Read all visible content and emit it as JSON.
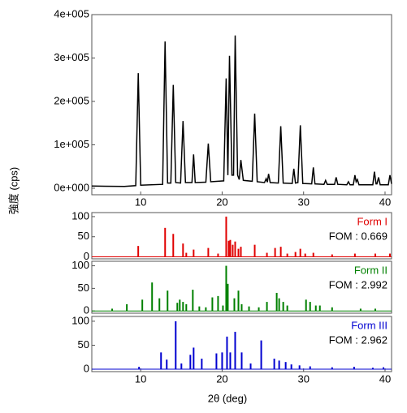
{
  "chart_data": [
    {
      "type": "line",
      "color": "#000000",
      "ylabel": "強度 (cps)",
      "xlim": [
        4,
        40.8
      ],
      "ylim": [
        -15000,
        400000
      ],
      "xticks": [
        10,
        20,
        30,
        40
      ],
      "yticks": [
        {
          "value": 0,
          "label": "0e+000"
        },
        {
          "value": 100000,
          "label": "1e+005"
        },
        {
          "value": 200000,
          "label": "2e+005"
        },
        {
          "value": 300000,
          "label": "3e+005"
        },
        {
          "value": 400000,
          "label": "4e+005"
        }
      ],
      "x": [
        4,
        8,
        9.4,
        9.7,
        10.0,
        12.7,
        13.0,
        13.3,
        13.7,
        14.0,
        14.3,
        14.9,
        15.2,
        15.5,
        16.3,
        16.5,
        16.7,
        18.0,
        18.3,
        18.6,
        20.2,
        20.5,
        20.7,
        20.9,
        21.2,
        21.4,
        21.6,
        21.9,
        22.1,
        22.3,
        22.6,
        23.7,
        24.0,
        24.3,
        25.2,
        25.4,
        25.55,
        25.7,
        25.9,
        26.9,
        27.2,
        27.5,
        28.6,
        28.8,
        29.0,
        29.3,
        29.6,
        29.9,
        31.0,
        31.2,
        31.4,
        32.5,
        32.7,
        32.9,
        33.8,
        34.0,
        34.2,
        35.3,
        35.5,
        35.7,
        36.1,
        36.3,
        36.45,
        36.6,
        36.8,
        38.5,
        38.7,
        38.9,
        39.0,
        39.2,
        39.4,
        40.4,
        40.6,
        40.8
      ],
      "values": [
        5000,
        4000,
        6000,
        265000,
        7000,
        9000,
        338000,
        12000,
        12000,
        238000,
        13000,
        12000,
        155000,
        13000,
        13000,
        78000,
        13000,
        14000,
        103000,
        15000,
        17000,
        253000,
        30000,
        305000,
        30000,
        30000,
        352000,
        30000,
        20000,
        65000,
        18000,
        16000,
        172000,
        15000,
        13000,
        22000,
        14000,
        33000,
        13000,
        12000,
        143000,
        12000,
        11000,
        45000,
        12000,
        13000,
        145000,
        11000,
        10000,
        48000,
        10000,
        9000,
        18000,
        9000,
        9000,
        25000,
        9000,
        8000,
        15000,
        8000,
        8000,
        30000,
        15000,
        20000,
        8000,
        8000,
        38000,
        10000,
        10000,
        25000,
        8000,
        8000,
        30000,
        10000
      ]
    },
    {
      "type": "stem",
      "name": "Form I",
      "annotation": "FOM : 0.669",
      "color": "#e00000",
      "xlim": [
        4,
        40.8
      ],
      "ylim": [
        -5,
        110
      ],
      "yticks": [
        0,
        50,
        100
      ],
      "x": [
        9.7,
        13.0,
        14.0,
        15.2,
        15.6,
        16.5,
        18.3,
        19.5,
        20.5,
        20.8,
        21.0,
        21.3,
        21.6,
        22.0,
        22.3,
        24.0,
        25.5,
        26.5,
        27.2,
        28.0,
        29.0,
        29.6,
        30.2,
        31.2,
        33.5,
        36.3,
        38.8,
        40.6
      ],
      "values": [
        27,
        72,
        57,
        33,
        10,
        18,
        22,
        8,
        100,
        40,
        42,
        30,
        38,
        20,
        25,
        30,
        10,
        22,
        25,
        8,
        12,
        20,
        8,
        10,
        6,
        8,
        8,
        8
      ]
    },
    {
      "type": "stem",
      "name": "Form II",
      "annotation": "FOM : 2.992",
      "color": "#008000",
      "xlim": [
        4,
        40.8
      ],
      "ylim": [
        -5,
        110
      ],
      "yticks": [
        0,
        50,
        100
      ],
      "x": [
        6.5,
        8.3,
        10.2,
        11.4,
        12.3,
        13.3,
        14.5,
        14.8,
        15.2,
        15.6,
        16.4,
        17.2,
        18.0,
        18.8,
        19.5,
        20.1,
        20.5,
        20.7,
        21.5,
        22.0,
        22.4,
        23.3,
        24.5,
        25.5,
        26.7,
        27.0,
        27.5,
        28.0,
        30.3,
        30.8,
        31.5,
        32.0,
        33.5,
        37.0,
        38.8
      ],
      "values": [
        5,
        15,
        25,
        63,
        28,
        45,
        18,
        25,
        20,
        15,
        47,
        10,
        8,
        30,
        33,
        12,
        100,
        60,
        28,
        45,
        15,
        10,
        8,
        20,
        40,
        28,
        20,
        12,
        25,
        20,
        12,
        12,
        8,
        5,
        5
      ]
    },
    {
      "type": "stem",
      "name": "Form III",
      "annotation": "FOM : 2.962",
      "color": "#0000d0",
      "xlabel": "2θ (deg)",
      "xlim": [
        4,
        40.8
      ],
      "ylim": [
        -5,
        110
      ],
      "yticks": [
        0,
        50,
        100
      ],
      "xticks": [
        10,
        20,
        30,
        40
      ],
      "x": [
        9.8,
        12.5,
        13.2,
        14.3,
        15.0,
        16.1,
        16.5,
        17.5,
        19.3,
        20.0,
        20.6,
        21.0,
        21.6,
        22.4,
        23.5,
        24.8,
        26.4,
        27.0,
        27.8,
        28.5,
        29.5,
        30.8,
        33.5,
        36.2,
        38.5,
        39.8
      ],
      "values": [
        5,
        35,
        20,
        100,
        12,
        30,
        45,
        22,
        33,
        35,
        68,
        35,
        78,
        35,
        12,
        60,
        22,
        18,
        15,
        10,
        8,
        6,
        4,
        5,
        3,
        4
      ]
    }
  ]
}
